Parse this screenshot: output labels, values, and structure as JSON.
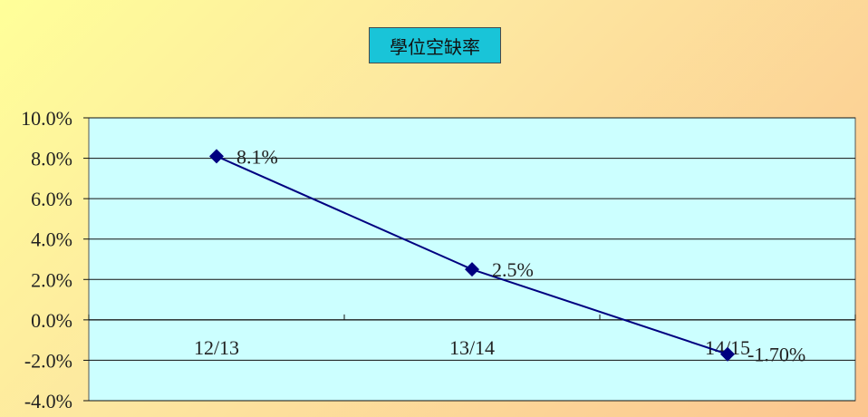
{
  "chart_data": {
    "type": "line",
    "title": "學位空缺率",
    "categories": [
      "12/13",
      "13/14",
      "14/15"
    ],
    "series": [
      {
        "values": [
          8.1,
          2.5,
          -1.7
        ],
        "data_labels": [
          "8.1%",
          "2.5%",
          "-1.70%"
        ]
      }
    ],
    "y_ticks": [
      "10.0%",
      "8.0%",
      "6.0%",
      "4.0%",
      "2.0%",
      "0.0%",
      "-2.0%",
      "-4.0%"
    ],
    "ylim": [
      -4,
      10
    ],
    "grid": true,
    "legend": "none",
    "colors": {
      "plot_background": "#ccffff",
      "line": "#000080",
      "marker": "#000080",
      "title_background": "#19c4d8"
    },
    "marker": "diamond"
  }
}
